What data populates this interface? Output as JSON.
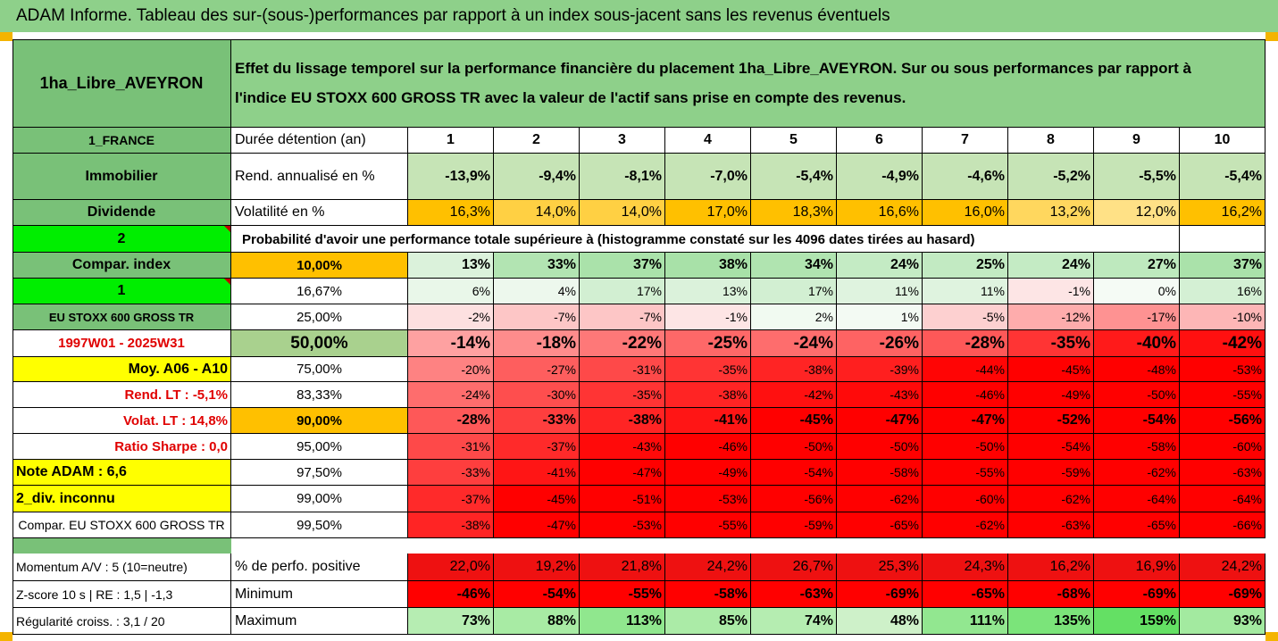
{
  "title": "ADAM Informe. Tableau des sur-(sous-)performances par rapport à un index sous-jacent sans les revenus éventuels",
  "header": {
    "name": "1ha_Libre_AVEYRON",
    "description_line1": "Effet du lissage temporel sur la performance financière du placement 1ha_Libre_AVEYRON. Sur ou sous performances par rapport à",
    "description_line2": "l'indice EU STOXX 600 GROSS TR avec la valeur de l'actif sans prise en compte des revenus."
  },
  "left_labels": {
    "r1": "1_FRANCE",
    "r2": "Immobilier",
    "r3": "Dividende",
    "r4": "2",
    "r5": "Compar. index",
    "r6": "1",
    "r7": "EU STOXX 600 GROSS TR",
    "r8": "1997W01 - 2025W31",
    "r9": "Moy. A06 - A10",
    "r10": "Rend. LT :   -5,1%",
    "r11": "Volat. LT :   14,8%",
    "r12": "Ratio Sharpe :   0,0",
    "r13": "Note ADAM : 6,6",
    "r14": "2_div. inconnu",
    "r15": "Compar. EU STOXX 600 GROSS TR",
    "r17": "Momentum A/V : 5 (10=neutre)",
    "r18": "Z-score 10 s  |  RE : 1,5  |  -1,3",
    "r19": "Régularité croiss. : 3,1 / 20"
  },
  "holding_label": "Durée détention (an)",
  "years": [
    "1",
    "2",
    "3",
    "4",
    "5",
    "6",
    "7",
    "8",
    "9",
    "10"
  ],
  "returns_label": "Rend. annualisé en %",
  "returns": [
    "-13,9%",
    "-9,4%",
    "-8,1%",
    "-7,0%",
    "-5,4%",
    "-4,9%",
    "-4,6%",
    "-5,2%",
    "-5,5%",
    "-5,4%"
  ],
  "volatility_label": "Volatilité en %",
  "volatility": [
    "16,3%",
    "14,0%",
    "14,0%",
    "17,0%",
    "18,3%",
    "16,6%",
    "16,0%",
    "13,2%",
    "12,0%",
    "16,2%"
  ],
  "probability_text": "Probabilité d'avoir une performance totale supérieure à (histogramme constaté sur les 4096 dates tirées au hasard)",
  "percentile_rows": [
    {
      "p": "10,00%",
      "values": [
        "13%",
        "33%",
        "37%",
        "38%",
        "34%",
        "24%",
        "25%",
        "24%",
        "27%",
        "37%"
      ]
    },
    {
      "p": "16,67%",
      "values": [
        "6%",
        "4%",
        "17%",
        "13%",
        "17%",
        "11%",
        "11%",
        "-1%",
        "0%",
        "16%"
      ]
    },
    {
      "p": "25,00%",
      "values": [
        "-2%",
        "-7%",
        "-7%",
        "-1%",
        "2%",
        "1%",
        "-5%",
        "-12%",
        "-17%",
        "-10%"
      ]
    },
    {
      "p": "50,00%",
      "values": [
        "-14%",
        "-18%",
        "-22%",
        "-25%",
        "-24%",
        "-26%",
        "-28%",
        "-35%",
        "-40%",
        "-42%"
      ]
    },
    {
      "p": "75,00%",
      "values": [
        "-20%",
        "-27%",
        "-31%",
        "-35%",
        "-38%",
        "-39%",
        "-44%",
        "-45%",
        "-48%",
        "-53%"
      ]
    },
    {
      "p": "83,33%",
      "values": [
        "-24%",
        "-30%",
        "-35%",
        "-38%",
        "-42%",
        "-43%",
        "-46%",
        "-49%",
        "-50%",
        "-55%"
      ]
    },
    {
      "p": "90,00%",
      "values": [
        "-28%",
        "-33%",
        "-38%",
        "-41%",
        "-45%",
        "-47%",
        "-47%",
        "-52%",
        "-54%",
        "-56%"
      ]
    },
    {
      "p": "95,00%",
      "values": [
        "-31%",
        "-37%",
        "-43%",
        "-46%",
        "-50%",
        "-50%",
        "-50%",
        "-54%",
        "-58%",
        "-60%"
      ]
    },
    {
      "p": "97,50%",
      "values": [
        "-33%",
        "-41%",
        "-47%",
        "-49%",
        "-54%",
        "-58%",
        "-55%",
        "-59%",
        "-62%",
        "-63%"
      ]
    },
    {
      "p": "99,00%",
      "values": [
        "-37%",
        "-45%",
        "-51%",
        "-53%",
        "-56%",
        "-62%",
        "-60%",
        "-62%",
        "-64%",
        "-64%"
      ]
    },
    {
      "p": "99,50%",
      "values": [
        "-38%",
        "-47%",
        "-53%",
        "-55%",
        "-59%",
        "-65%",
        "-62%",
        "-63%",
        "-65%",
        "-66%"
      ]
    }
  ],
  "positive_label": "% de perfo. positive",
  "positive": [
    "22,0%",
    "19,2%",
    "21,8%",
    "24,2%",
    "26,7%",
    "25,3%",
    "24,3%",
    "16,2%",
    "16,9%",
    "24,2%"
  ],
  "minimum_label": "Minimum",
  "minimum": [
    "-46%",
    "-54%",
    "-55%",
    "-58%",
    "-63%",
    "-69%",
    "-65%",
    "-68%",
    "-69%",
    "-69%"
  ],
  "maximum_label": "Maximum",
  "maximum": [
    "73%",
    "88%",
    "113%",
    "85%",
    "74%",
    "48%",
    "111%",
    "135%",
    "159%",
    "93%"
  ],
  "colors": {
    "title_green": "#8ed08a",
    "label_green": "#79c178",
    "bright_green": "#00ee00",
    "yellow": "#ffff00",
    "orange": "#ffc000",
    "red_text": "#e00000",
    "negative_red": "#ff0000",
    "positive_green": "#63be7b"
  }
}
